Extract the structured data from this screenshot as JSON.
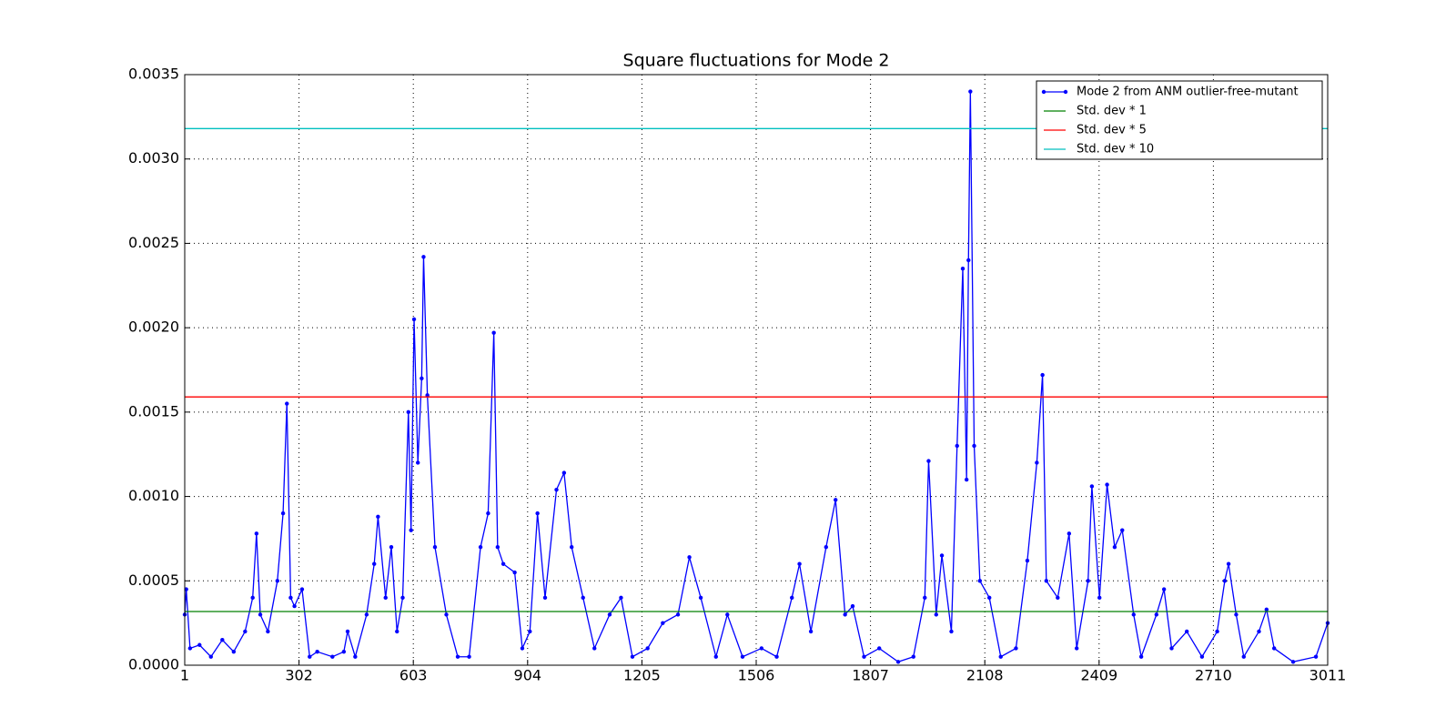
{
  "chart_data": {
    "type": "line",
    "title": "Square fluctuations for Mode 2",
    "x": [
      1,
      5,
      15,
      40,
      70,
      100,
      130,
      160,
      180,
      190,
      200,
      220,
      245,
      260,
      270,
      280,
      290,
      310,
      330,
      350,
      390,
      420,
      430,
      450,
      480,
      500,
      510,
      530,
      545,
      560,
      575,
      590,
      597,
      605,
      615,
      625,
      630,
      640,
      660,
      690,
      720,
      750,
      780,
      800,
      815,
      825,
      840,
      870,
      890,
      910,
      930,
      950,
      980,
      1000,
      1020,
      1050,
      1080,
      1120,
      1150,
      1180,
      1220,
      1260,
      1300,
      1330,
      1360,
      1400,
      1430,
      1470,
      1520,
      1560,
      1600,
      1620,
      1650,
      1690,
      1715,
      1740,
      1760,
      1790,
      1830,
      1880,
      1920,
      1950,
      1960,
      1980,
      1995,
      2020,
      2035,
      2050,
      2060,
      2065,
      2070,
      2080,
      2095,
      2120,
      2150,
      2190,
      2220,
      2245,
      2260,
      2270,
      2300,
      2330,
      2350,
      2380,
      2390,
      2410,
      2430,
      2450,
      2470,
      2500,
      2520,
      2560,
      2580,
      2600,
      2640,
      2680,
      2720,
      2740,
      2750,
      2770,
      2790,
      2830,
      2850,
      2870,
      2920,
      2980,
      3011
    ],
    "series": [
      {
        "name": "Mode 2 from ANM outlier-free-mutant",
        "color": "#0000ff",
        "role": "data",
        "values": [
          0.0003,
          0.00045,
          0.0001,
          0.00012,
          5e-05,
          0.00015,
          8e-05,
          0.0002,
          0.0004,
          0.00078,
          0.0003,
          0.0002,
          0.0005,
          0.0009,
          0.00155,
          0.0004,
          0.00035,
          0.00045,
          5e-05,
          8e-05,
          5e-05,
          8e-05,
          0.0002,
          5e-05,
          0.0003,
          0.0006,
          0.00088,
          0.0004,
          0.0007,
          0.0002,
          0.0004,
          0.0015,
          0.0008,
          0.00205,
          0.0012,
          0.0017,
          0.00242,
          0.0016,
          0.0007,
          0.0003,
          5e-05,
          5e-05,
          0.0007,
          0.0009,
          0.00197,
          0.0007,
          0.0006,
          0.00055,
          0.0001,
          0.0002,
          0.0009,
          0.0004,
          0.00104,
          0.00114,
          0.0007,
          0.0004,
          0.0001,
          0.0003,
          0.0004,
          5e-05,
          0.0001,
          0.00025,
          0.0003,
          0.00064,
          0.0004,
          5e-05,
          0.0003,
          5e-05,
          0.0001,
          5e-05,
          0.0004,
          0.0006,
          0.0002,
          0.0007,
          0.00098,
          0.0003,
          0.00035,
          5e-05,
          0.0001,
          2e-05,
          5e-05,
          0.0004,
          0.00121,
          0.0003,
          0.00065,
          0.0002,
          0.0013,
          0.00235,
          0.0011,
          0.0024,
          0.0034,
          0.0013,
          0.0005,
          0.0004,
          5e-05,
          0.0001,
          0.00062,
          0.0012,
          0.00172,
          0.0005,
          0.0004,
          0.00078,
          0.0001,
          0.0005,
          0.00106,
          0.0004,
          0.00107,
          0.0007,
          0.0008,
          0.0003,
          5e-05,
          0.0003,
          0.00045,
          0.0001,
          0.0002,
          5e-05,
          0.0002,
          0.0005,
          0.0006,
          0.0003,
          5e-05,
          0.0002,
          0.00033,
          0.0001,
          2e-05,
          5e-05,
          0.00025
        ]
      },
      {
        "name": "Std. dev * 1",
        "color": "#008000",
        "role": "hline",
        "value": 0.000318
      },
      {
        "name": "Std. dev * 5",
        "color": "#ff0000",
        "role": "hline",
        "value": 0.00159
      },
      {
        "name": "Std. dev * 10",
        "color": "#00bfbf",
        "role": "hline",
        "value": 0.00318
      }
    ],
    "xlim": [
      1,
      3011
    ],
    "xticks": [
      1,
      302,
      603,
      904,
      1205,
      1506,
      1807,
      2108,
      2409,
      2710,
      3011
    ],
    "ylim": [
      0,
      0.0035
    ],
    "yticks": [
      {
        "value": 0,
        "label": "0.0000"
      },
      {
        "value": 0.0005,
        "label": "0.0005"
      },
      {
        "value": 0.001,
        "label": "0.0010"
      },
      {
        "value": 0.0015,
        "label": "0.0015"
      },
      {
        "value": 0.002,
        "label": "0.0020"
      },
      {
        "value": 0.0025,
        "label": "0.0025"
      },
      {
        "value": 0.003,
        "label": "0.0030"
      },
      {
        "value": 0.0035,
        "label": "0.0035"
      }
    ],
    "grid": true,
    "legend": "upper right"
  }
}
